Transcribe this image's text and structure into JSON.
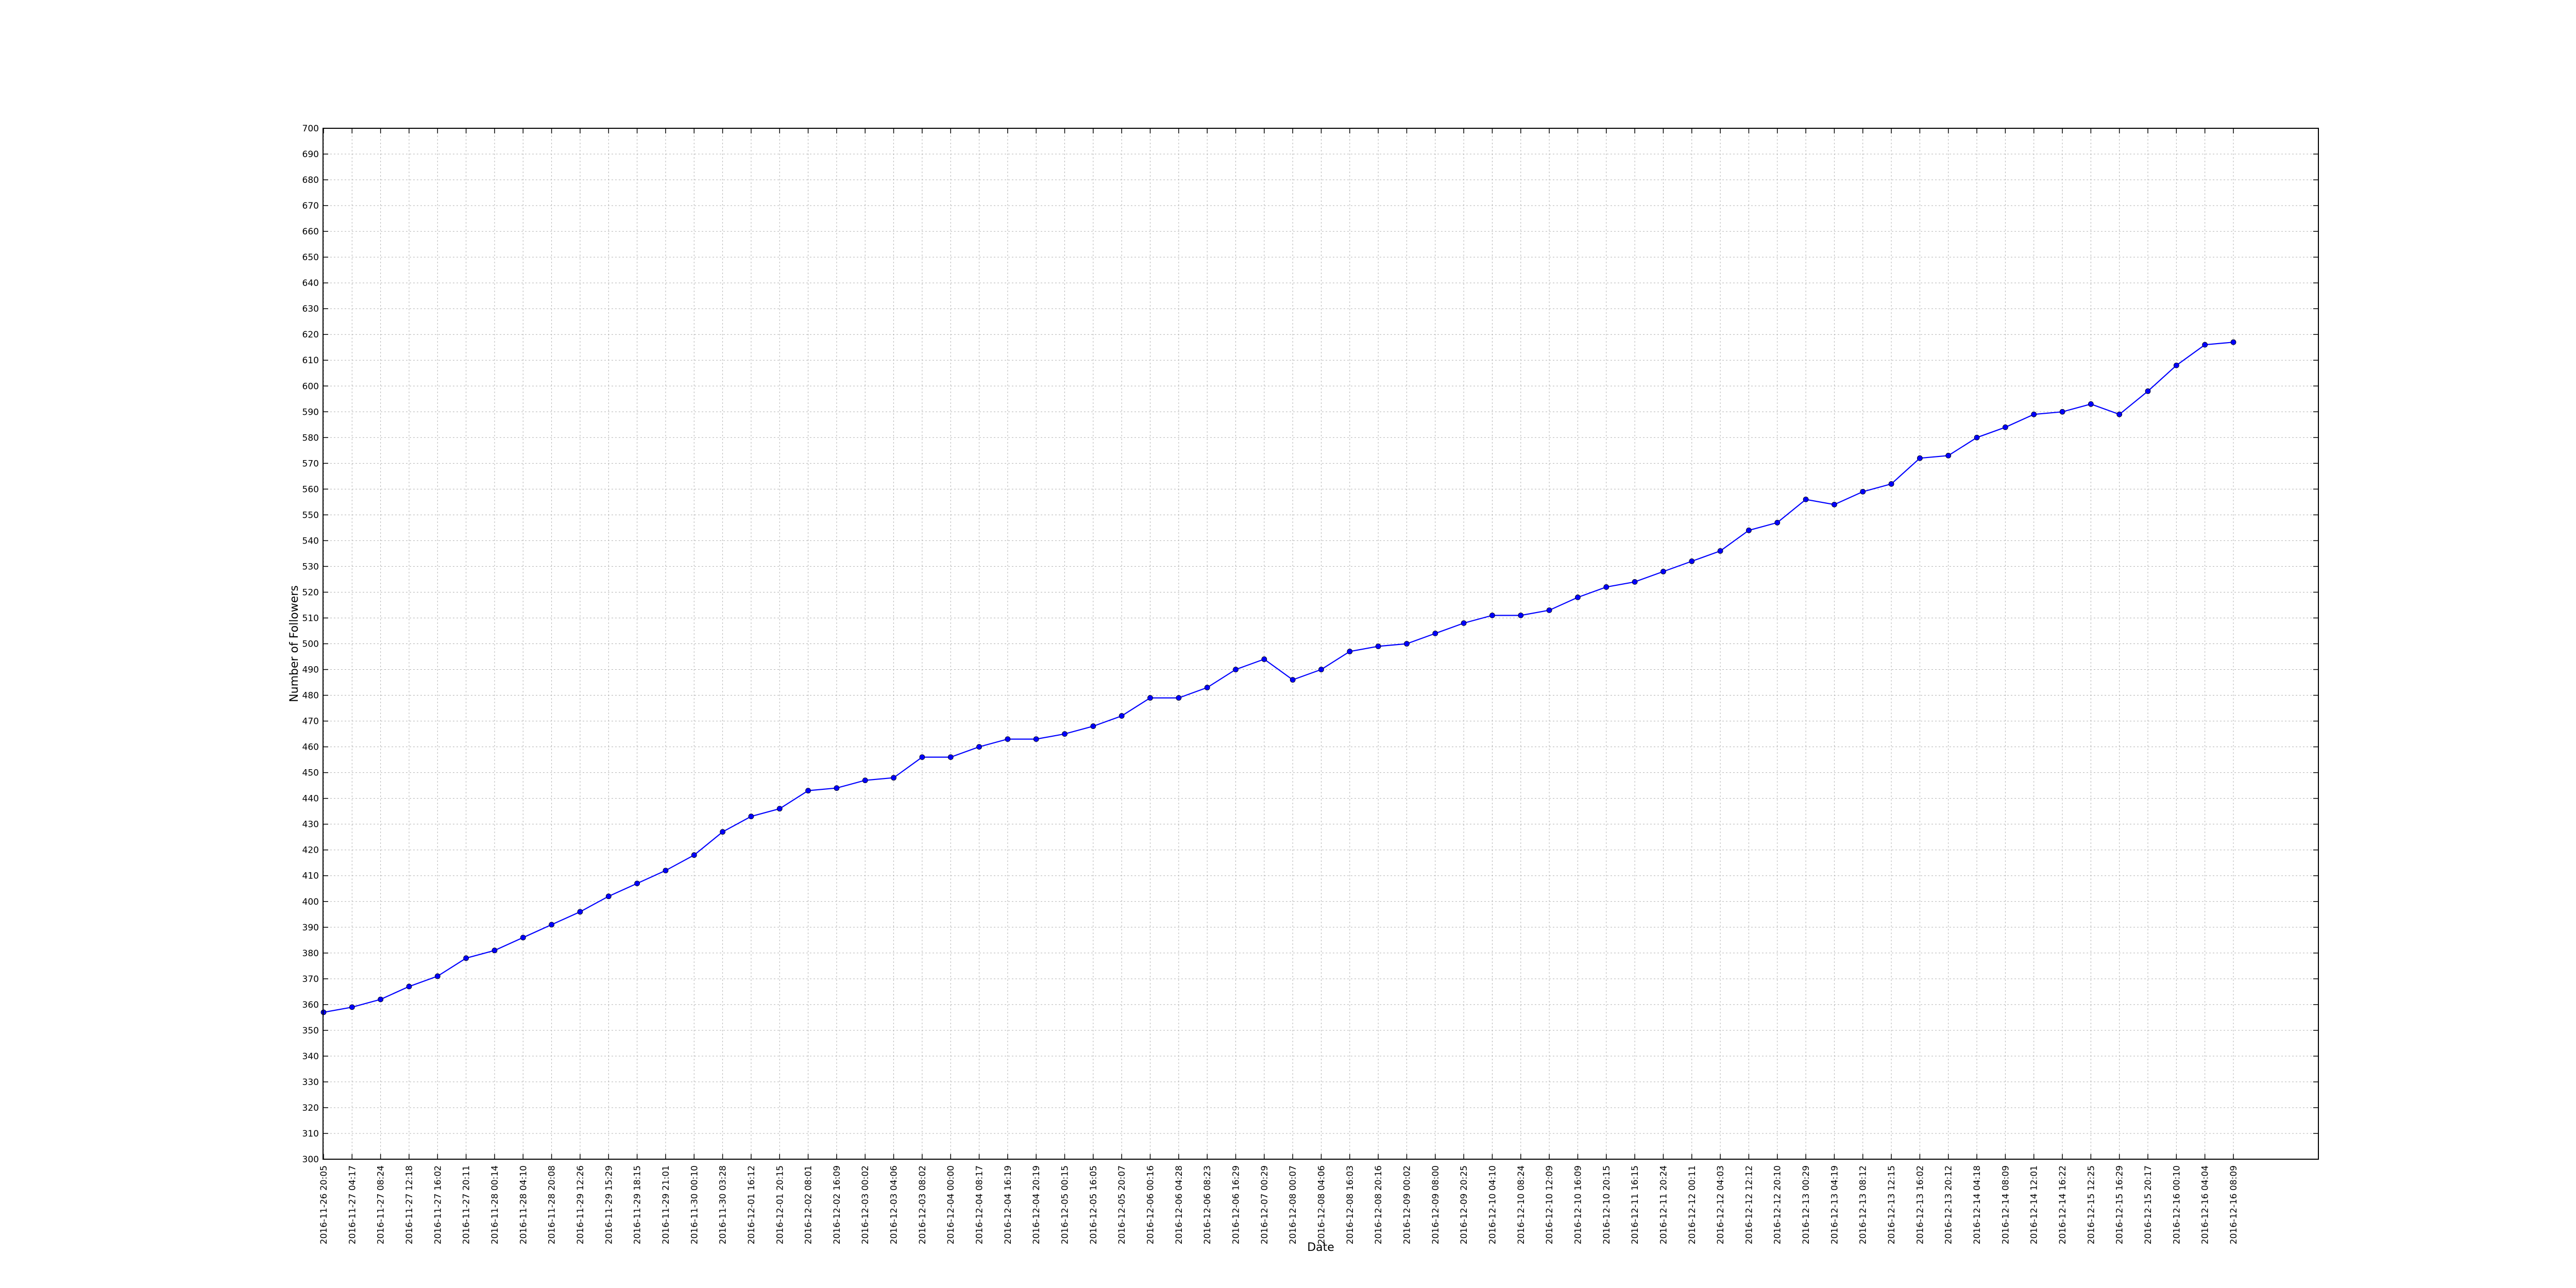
{
  "chart_data": {
    "type": "line",
    "title": "",
    "xlabel": "Date",
    "ylabel": "Number of Followers",
    "ylim": [
      300,
      700
    ],
    "ytick_step": 10,
    "grid": true,
    "series": [
      {
        "color": "#0000ff",
        "marker": "circle",
        "x": [
          "2016-11-26 20:05",
          "2016-11-27 04:17",
          "2016-11-27 08:24",
          "2016-11-27 12:18",
          "2016-11-27 16:02",
          "2016-11-27 20:11",
          "2016-11-28 00:14",
          "2016-11-28 04:10",
          "2016-11-28 20:08",
          "2016-11-29 12:26",
          "2016-11-29 15:29",
          "2016-11-29 18:15",
          "2016-11-29 21:01",
          "2016-11-30 00:10",
          "2016-11-30 03:28",
          "2016-12-01 16:12",
          "2016-12-01 20:15",
          "2016-12-02 08:01",
          "2016-12-02 16:09",
          "2016-12-03 00:02",
          "2016-12-03 04:06",
          "2016-12-03 08:02",
          "2016-12-04 00:00",
          "2016-12-04 08:17",
          "2016-12-04 16:19",
          "2016-12-04 20:19",
          "2016-12-05 00:15",
          "2016-12-05 16:05",
          "2016-12-05 20:07",
          "2016-12-06 00:16",
          "2016-12-06 04:28",
          "2016-12-06 08:23",
          "2016-12-06 16:29",
          "2016-12-07 00:29",
          "2016-12-08 00:07",
          "2016-12-08 04:06",
          "2016-12-08 16:03",
          "2016-12-08 20:16",
          "2016-12-09 00:02",
          "2016-12-09 08:00",
          "2016-12-09 20:25",
          "2016-12-10 04:10",
          "2016-12-10 08:24",
          "2016-12-10 12:09",
          "2016-12-10 16:09",
          "2016-12-10 20:15",
          "2016-12-11 16:15",
          "2016-12-11 20:24",
          "2016-12-12 00:11",
          "2016-12-12 04:03",
          "2016-12-12 12:12",
          "2016-12-12 20:10",
          "2016-12-13 00:29",
          "2016-12-13 04:19",
          "2016-12-13 08:12",
          "2016-12-13 12:15",
          "2016-12-13 16:02",
          "2016-12-13 20:12",
          "2016-12-14 04:18",
          "2016-12-14 08:09",
          "2016-12-14 12:01",
          "2016-12-14 16:22",
          "2016-12-15 12:25",
          "2016-12-15 16:29",
          "2016-12-15 20:17",
          "2016-12-16 00:10",
          "2016-12-16 04:04",
          "2016-12-16 08:09"
        ],
        "values": [
          357,
          359,
          362,
          367,
          371,
          378,
          381,
          386,
          391,
          396,
          402,
          407,
          412,
          418,
          427,
          433,
          436,
          443,
          444,
          447,
          448,
          456,
          456,
          460,
          463,
          463,
          465,
          468,
          472,
          479,
          479,
          483,
          490,
          494,
          486,
          490,
          497,
          499,
          500,
          504,
          508,
          511,
          511,
          513,
          518,
          522,
          524,
          528,
          532,
          536,
          544,
          547,
          556,
          554,
          559,
          562,
          572,
          573,
          580,
          584,
          589,
          590,
          593,
          589,
          598,
          608,
          616,
          617
        ]
      }
    ]
  }
}
